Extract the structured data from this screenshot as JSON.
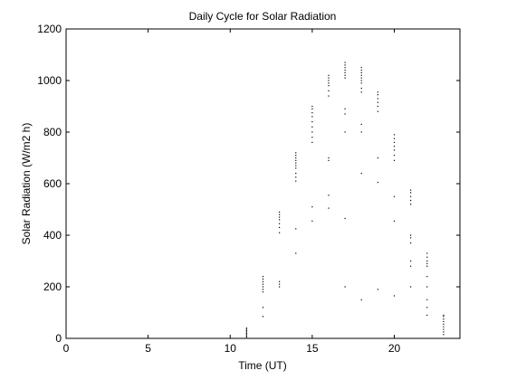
{
  "chart_data": {
    "type": "scatter",
    "title": "Daily Cycle for Solar Radiation",
    "xlabel": "Time (UT)",
    "ylabel": "Solar Radiation (W/m2 h)",
    "xlim": [
      0,
      24
    ],
    "ylim": [
      0,
      1200
    ],
    "xticks": [
      0,
      5,
      10,
      15,
      20
    ],
    "yticks": [
      0,
      200,
      400,
      600,
      800,
      1000,
      1200
    ],
    "grid": false,
    "marker_color": "#000000",
    "points": [
      {
        "x": 11,
        "y": [
          5,
          10,
          15,
          20,
          25,
          30,
          35,
          40
        ]
      },
      {
        "x": 12,
        "y": [
          85,
          120,
          180,
          190,
          200,
          210,
          220,
          230,
          240
        ]
      },
      {
        "x": 13,
        "y": [
          200,
          210,
          220,
          410,
          430,
          445,
          460,
          470,
          480,
          490
        ]
      },
      {
        "x": 14,
        "y": [
          330,
          425,
          610,
          625,
          640,
          660,
          670,
          680,
          690,
          700,
          710,
          720
        ]
      },
      {
        "x": 15,
        "y": [
          455,
          510,
          760,
          780,
          800,
          820,
          840,
          860,
          875,
          890,
          900
        ]
      },
      {
        "x": 16,
        "y": [
          505,
          555,
          690,
          700,
          940,
          960,
          980,
          990,
          1000,
          1010,
          1020
        ]
      },
      {
        "x": 17,
        "y": [
          200,
          465,
          800,
          870,
          890,
          1010,
          1020,
          1030,
          1040,
          1050,
          1060,
          1070
        ]
      },
      {
        "x": 18,
        "y": [
          150,
          640,
          800,
          830,
          955,
          970,
          990,
          1000,
          1010,
          1020,
          1030,
          1040,
          1050
        ]
      },
      {
        "x": 19,
        "y": [
          190,
          605,
          700,
          880,
          900,
          915,
          930,
          945,
          955
        ]
      },
      {
        "x": 20,
        "y": [
          165,
          455,
          550,
          690,
          710,
          730,
          745,
          760,
          775,
          790
        ]
      },
      {
        "x": 21,
        "y": [
          200,
          280,
          300,
          370,
          390,
          400,
          520,
          535,
          550,
          565,
          575
        ]
      },
      {
        "x": 22,
        "y": [
          90,
          120,
          150,
          200,
          240,
          280,
          290,
          300,
          315,
          330
        ]
      },
      {
        "x": 23,
        "y": [
          15,
          25,
          35,
          45,
          55,
          65,
          75,
          85,
          90
        ]
      }
    ]
  }
}
